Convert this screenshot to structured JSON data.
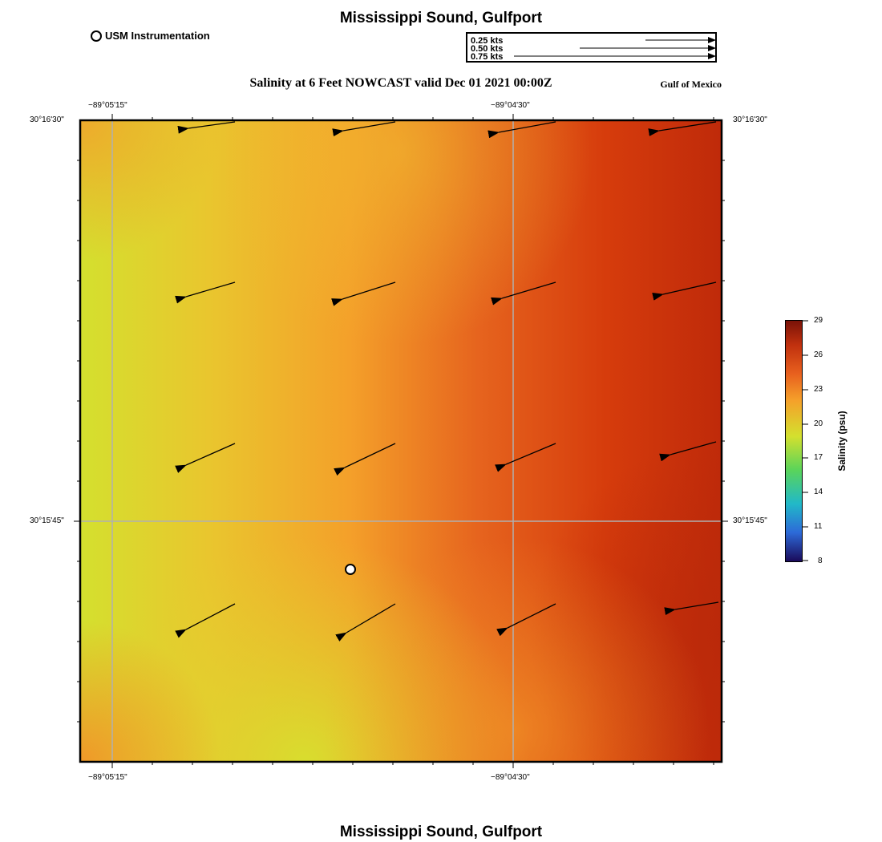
{
  "header": {
    "title": "Mississippi Sound, Gulfport",
    "legend_label": "USM Instrumentation",
    "subtitle": "Salinity at 6 Feet NOWCAST valid Dec 01 2021 00:00Z",
    "region": "Gulf of Mexico"
  },
  "speed_scale": [
    {
      "label": "0.25 kts",
      "knots": 0.25
    },
    {
      "label": "0.50 kts",
      "knots": 0.5
    },
    {
      "label": "0.75 kts",
      "knots": 0.75
    }
  ],
  "map": {
    "lon_labels": [
      "−89°05'15\"",
      "−89°04'30\""
    ],
    "lat_labels": [
      "30°16'30\"",
      "30°15'45\""
    ],
    "station_marker": "USM Instrumentation"
  },
  "colorbar": {
    "label": "Salinity (psu)",
    "ticks": [
      "29",
      "26",
      "23",
      "20",
      "17",
      "14",
      "11",
      "8"
    ],
    "min": 8,
    "max": 29
  },
  "footer": {
    "title": "Mississippi Sound, Gulfport"
  }
}
